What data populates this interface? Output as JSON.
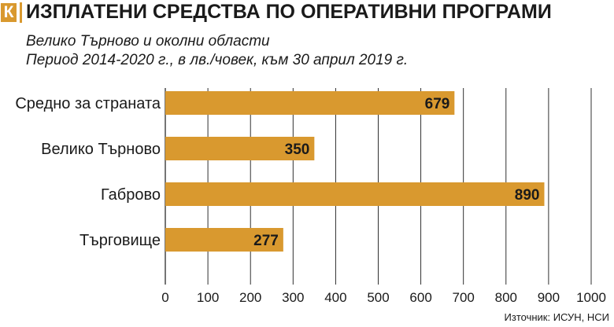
{
  "header": {
    "brand": "К",
    "title": "ИЗПЛАТЕНИ СРЕДСТВА ПО ОПЕРАТИВНИ ПРОГРАМИ"
  },
  "subtitle": {
    "line1": "Велико Търново и околни области",
    "line2": "Период 2014-2020 г., в лв./човек, към 30 април 2019 г."
  },
  "source": "Източник: ИСУН, НСИ",
  "colors": {
    "bar": "#d9992f",
    "grid": "#1a1a1a",
    "brand": "#d9992f"
  },
  "chart_data": {
    "type": "bar",
    "orientation": "horizontal",
    "categories": [
      "Средно за страната",
      "Велико Търново",
      "Габрово",
      "Търговище"
    ],
    "values": [
      679,
      350,
      890,
      277
    ],
    "xlim": [
      0,
      1000
    ],
    "xticks": [
      0,
      100,
      200,
      300,
      400,
      500,
      600,
      700,
      800,
      900,
      1000
    ],
    "grid": true,
    "data_labels": true
  }
}
